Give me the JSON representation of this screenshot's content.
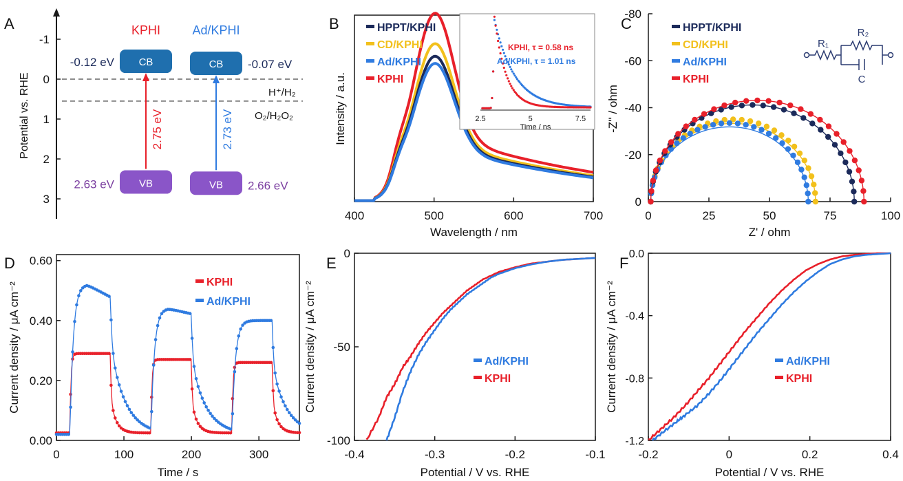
{
  "colors": {
    "red": "#e8202a",
    "blue": "#2f7be0",
    "navy": "#1b2a5a",
    "yellow": "#f2c01c",
    "purple": "#7b3fa0",
    "cb_fill": "#1f6fae",
    "vb_fill": "#8a55c8",
    "axis": "#1a1a1a",
    "dash": "#8c8c8c"
  },
  "chart_data": [
    {
      "panel": "A",
      "type": "diagram",
      "ylabel": "Potential vs. RHE",
      "ylim": [
        -1.5,
        3.5
      ],
      "yticks": [
        "-1",
        "0",
        "1",
        "2",
        "3"
      ],
      "ytick_values": [
        -1,
        0,
        1,
        2,
        3
      ],
      "materials": [
        {
          "name": "KPHI",
          "cb": -0.12,
          "vb": 2.63,
          "cb_label": "-0.12 eV",
          "vb_label": "2.63 eV",
          "gap_label": "2.75 eV",
          "cb_text": "CB",
          "vb_text": "VB"
        },
        {
          "name": "Ad/KPHI",
          "cb": -0.07,
          "vb": 2.66,
          "cb_label": "-0.07 eV",
          "vb_label": "2.66 eV",
          "gap_label": "2.73 eV",
          "cb_text": "CB",
          "vb_text": "VB"
        }
      ],
      "reference_lines": [
        {
          "value": 0.0,
          "label": "H⁺/H₂"
        },
        {
          "value": 0.55,
          "label": "O₂/H₂O₂"
        }
      ]
    },
    {
      "panel": "B",
      "type": "line",
      "xlabel": "Wavelength / nm",
      "ylabel": "Intensity / a.u.",
      "xlim": [
        400,
        700
      ],
      "xticks": [
        400,
        500,
        600,
        700
      ],
      "series": [
        {
          "name": "HPPT/KPHI",
          "peak": 0.66
        },
        {
          "name": "CD/KPHI",
          "peak": 0.73
        },
        {
          "name": "Ad/KPHI",
          "peak": 0.62
        },
        {
          "name": "KPHI",
          "peak": 0.9
        }
      ],
      "inset": {
        "type": "line",
        "xlabel": "Time / ns",
        "xlim": [
          2.5,
          8
        ],
        "xticks": [
          "2.5",
          "5",
          "7.5"
        ],
        "xtick_values": [
          2.5,
          5,
          7.5
        ],
        "series": [
          {
            "name": "KPHI",
            "label": "KPHI,  τ = 0.58 ns",
            "tau": 0.58
          },
          {
            "name": "Ad/KPHI",
            "label": "Ad/KPHI, τ = 1.01 ns",
            "tau": 1.01
          }
        ]
      }
    },
    {
      "panel": "C",
      "type": "scatter",
      "xlabel": "Z' / ohm",
      "ylabel": "-Z'' / ohm",
      "xlim": [
        0,
        100
      ],
      "ylim": [
        0,
        -80
      ],
      "xticks": [
        0,
        25,
        50,
        75,
        100
      ],
      "yticks": [
        0,
        -20,
        -40,
        -60,
        -80
      ],
      "series": [
        {
          "name": "HPPT/KPHI",
          "r_s": 1,
          "r_ct": 84
        },
        {
          "name": "CD/KPHI",
          "r_s": 1,
          "r_ct": 68
        },
        {
          "name": "Ad/KPHI",
          "r_s": 1,
          "r_ct": 65
        },
        {
          "name": "KPHI",
          "r_s": 1,
          "r_ct": 88
        }
      ],
      "circuit_labels": {
        "r1": "R₁",
        "r2": "R₂",
        "c": "C"
      }
    },
    {
      "panel": "D",
      "type": "line",
      "xlabel": "Time / s",
      "ylabel": "Current density / μA cm⁻²",
      "xlim": [
        0,
        360
      ],
      "ylim": [
        0,
        0.6
      ],
      "xticks": [
        0,
        100,
        200,
        300
      ],
      "yticks": [
        "0.00",
        "0.20",
        "0.40",
        "0.60"
      ],
      "ytick_values": [
        0,
        0.2,
        0.4,
        0.6
      ],
      "light_on_off": [
        [
          20,
          80
        ],
        [
          140,
          200
        ],
        [
          260,
          320
        ]
      ],
      "series": [
        {
          "name": "KPHI",
          "on_levels": [
            0.29,
            0.27,
            0.26
          ],
          "dark": 0.025
        },
        {
          "name": "Ad/KPHI",
          "on_levels": [
            0.52,
            0.44,
            0.4
          ],
          "dark": 0.02
        }
      ]
    },
    {
      "panel": "E",
      "type": "line",
      "xlabel": "Potential / V vs. RHE",
      "ylabel": "Current density / μA cm⁻²",
      "xlim": [
        -0.4,
        -0.1
      ],
      "ylim": [
        -100,
        0
      ],
      "xticks": [
        "-0.4",
        "-0.3",
        "-0.2",
        "-0.1"
      ],
      "xtick_values": [
        -0.4,
        -0.3,
        -0.2,
        -0.1
      ],
      "yticks": [
        "-100",
        "-50",
        "0"
      ],
      "ytick_values": [
        -100,
        -50,
        0
      ],
      "series": [
        {
          "name": "Ad/KPHI",
          "x": [
            -0.36,
            -0.35,
            -0.34,
            -0.33,
            -0.32,
            -0.31,
            -0.3,
            -0.29,
            -0.28,
            -0.27,
            -0.26,
            -0.25,
            -0.24,
            -0.23,
            -0.22,
            -0.2,
            -0.18,
            -0.16,
            -0.14,
            -0.12,
            -0.1
          ],
          "y": [
            -100,
            -88,
            -74,
            -63,
            -54,
            -47,
            -41,
            -35,
            -30,
            -26,
            -22,
            -19,
            -16,
            -13,
            -11,
            -8,
            -6,
            -4.5,
            -3.5,
            -3,
            -2.5
          ]
        },
        {
          "name": "KPHI",
          "x": [
            -0.385,
            -0.37,
            -0.36,
            -0.35,
            -0.34,
            -0.33,
            -0.32,
            -0.31,
            -0.3,
            -0.29,
            -0.28,
            -0.27,
            -0.26,
            -0.25,
            -0.24,
            -0.22,
            -0.2,
            -0.18,
            -0.16,
            -0.14,
            -0.12,
            -0.1
          ],
          "y": [
            -100,
            -88,
            -77,
            -70,
            -61,
            -55,
            -48,
            -42,
            -37,
            -32,
            -28,
            -24,
            -20,
            -17,
            -14,
            -10,
            -7.5,
            -5.5,
            -4.5,
            -3.5,
            -3,
            -2.5
          ]
        }
      ]
    },
    {
      "panel": "F",
      "type": "line",
      "xlabel": "Potential / V vs. RHE",
      "ylabel": "Current density / μA cm⁻²",
      "xlim": [
        -0.2,
        0.4
      ],
      "ylim": [
        -1.2,
        0
      ],
      "xticks": [
        "-0.2",
        "0",
        "0.2",
        "0.4"
      ],
      "xtick_values": [
        -0.2,
        0,
        0.2,
        0.4
      ],
      "yticks": [
        "-1.2",
        "-0.8",
        "-0.4",
        "0.0"
      ],
      "ytick_values": [
        -1.2,
        -0.8,
        -0.4,
        0
      ],
      "series": [
        {
          "name": "Ad/KPHI",
          "x": [
            -0.19,
            -0.16,
            -0.13,
            -0.11,
            -0.08,
            -0.05,
            -0.02,
            0.01,
            0.04,
            0.07,
            0.1,
            0.13,
            0.16,
            0.19,
            0.22,
            0.25,
            0.28,
            0.31,
            0.34,
            0.37,
            0.4
          ],
          "y": [
            -1.2,
            -1.14,
            -1.08,
            -1.04,
            -0.98,
            -0.9,
            -0.81,
            -0.71,
            -0.61,
            -0.51,
            -0.42,
            -0.33,
            -0.25,
            -0.18,
            -0.12,
            -0.07,
            -0.04,
            -0.02,
            -0.01,
            -0.005,
            0
          ]
        },
        {
          "name": "KPHI",
          "x": [
            -0.2,
            -0.17,
            -0.14,
            -0.11,
            -0.08,
            -0.05,
            -0.02,
            0.01,
            0.04,
            0.07,
            0.1,
            0.13,
            0.16,
            0.19,
            0.22,
            0.25,
            0.28,
            0.31,
            0.34,
            0.37,
            0.4
          ],
          "y": [
            -1.2,
            -1.13,
            -1.06,
            -0.98,
            -0.89,
            -0.8,
            -0.7,
            -0.6,
            -0.5,
            -0.41,
            -0.32,
            -0.24,
            -0.17,
            -0.11,
            -0.07,
            -0.04,
            -0.02,
            -0.01,
            -0.005,
            0,
            0
          ]
        }
      ]
    }
  ]
}
